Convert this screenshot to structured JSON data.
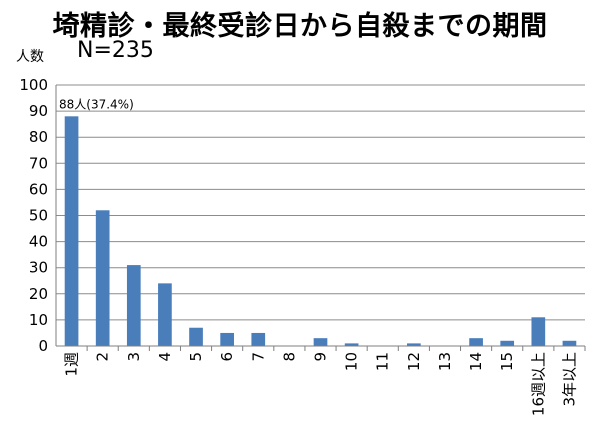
{
  "chart_data": {
    "type": "bar",
    "title": "埼精診・最終受診日から自殺までの期間",
    "ylabel": "人数",
    "note": "N=235",
    "categories": [
      "1週",
      "2",
      "3",
      "4",
      "5",
      "6",
      "7",
      "8",
      "9",
      "10",
      "11",
      "12",
      "13",
      "14",
      "15",
      "16週以上",
      "3年以上"
    ],
    "values": [
      88,
      52,
      31,
      24,
      7,
      5,
      5,
      0,
      3,
      1,
      0,
      1,
      0,
      3,
      2,
      11,
      2
    ],
    "ylim": [
      0,
      100
    ],
    "yticks": [
      0,
      10,
      20,
      30,
      40,
      50,
      60,
      70,
      80,
      90,
      100
    ],
    "grid": true,
    "bar_color": "#4a7ebb",
    "annotations": [
      {
        "category": "1週",
        "text": "88人(37.4%)"
      }
    ]
  }
}
